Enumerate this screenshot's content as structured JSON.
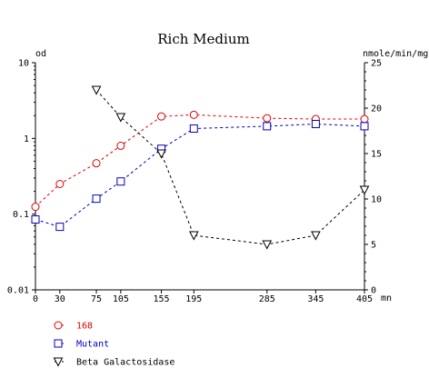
{
  "chart_data": {
    "type": "line",
    "title": "Rich Medium",
    "x": [
      0,
      30,
      75,
      105,
      155,
      195,
      285,
      345,
      405
    ],
    "xlabel": "mn",
    "x_ticks": [
      "0",
      "30",
      "75",
      "105",
      "155",
      "195",
      "285",
      "345",
      "405"
    ],
    "xlim": [
      0,
      405
    ],
    "y_left": {
      "label": "od",
      "scale": "log",
      "lim": [
        0.01,
        10
      ],
      "ticks": [
        "10",
        "1",
        "0.1",
        "0.01"
      ]
    },
    "y_right": {
      "label": "nmole/min/mg",
      "scale": "linear",
      "lim": [
        0,
        25
      ],
      "ticks": [
        "0",
        "5",
        "10",
        "15",
        "20",
        "25"
      ]
    },
    "grid": false,
    "legend_position": "bottom-left",
    "series": [
      {
        "name": "168",
        "axis": "left",
        "color": "#e00000",
        "marker": "circle",
        "x": [
          0,
          30,
          75,
          105,
          155,
          195,
          285,
          345,
          405
        ],
        "values": [
          0.125,
          0.25,
          0.47,
          0.8,
          1.95,
          2.05,
          1.85,
          1.8,
          1.8
        ]
      },
      {
        "name": "Mutant",
        "axis": "left",
        "color": "#0000c8",
        "marker": "square",
        "x": [
          0,
          30,
          75,
          105,
          155,
          195,
          285,
          345,
          405
        ],
        "values": [
          0.085,
          0.068,
          0.16,
          0.27,
          0.73,
          1.35,
          1.45,
          1.55,
          1.45
        ]
      },
      {
        "name": "Beta Galactosidase",
        "axis": "right",
        "color": "#000000",
        "marker": "triangle-down",
        "x": [
          75,
          105,
          155,
          195,
          285,
          345,
          405
        ],
        "values": [
          22,
          19,
          15,
          6,
          5,
          6,
          11
        ]
      }
    ]
  }
}
